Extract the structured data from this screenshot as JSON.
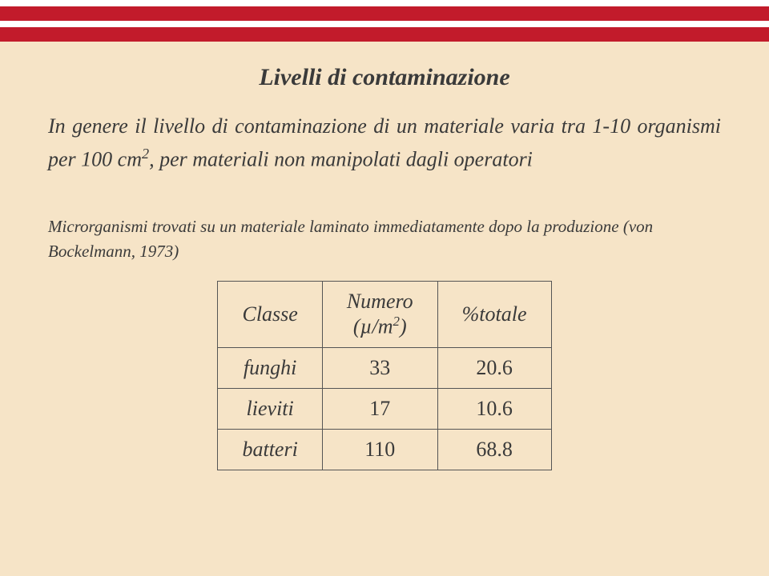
{
  "bars": {
    "white": "#ffffff",
    "red": "#c21b2b",
    "bg": "#f6e4c7"
  },
  "title": "Livelli di contaminazione",
  "para1_pre": "In genere il livello di contaminazione di un materiale varia tra 1-10 organismi per 100 cm",
  "para1_sup": "2",
  "para1_post": ", per materiali non manipolati dagli operatori",
  "para2": "Microrganismi trovati su un materiale laminato immediatamente dopo la produzione (von Bockelmann, 1973)",
  "table": {
    "headers": {
      "classe": "Classe",
      "numero_pre": "Numero",
      "numero_unit_pre": "(µ/m",
      "numero_unit_sup": "2",
      "numero_unit_post": ")",
      "totale": "%totale"
    },
    "rows": [
      {
        "classe": "funghi",
        "numero": "33",
        "pct": "20.6"
      },
      {
        "classe": "lieviti",
        "numero": "17",
        "pct": "10.6"
      },
      {
        "classe": "batteri",
        "numero": "110",
        "pct": "68.8"
      }
    ]
  }
}
